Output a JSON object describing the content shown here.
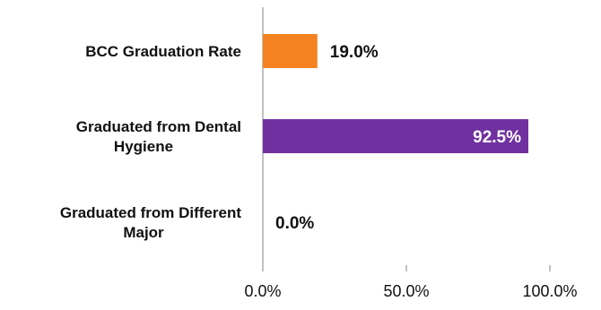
{
  "chart_data": {
    "type": "bar",
    "orientation": "horizontal",
    "categories": [
      [
        "BCC Graduation Rate"
      ],
      [
        "Graduated from Dental",
        "Hygiene"
      ],
      [
        "Graduated from Different",
        "Major"
      ]
    ],
    "values": [
      19.0,
      92.5,
      0.0
    ],
    "value_labels": [
      "19.0%",
      "92.5%",
      "0.0%"
    ],
    "bar_colors": [
      "#F58220",
      "#7030A0",
      "#7030A0"
    ],
    "xlim": [
      0,
      100
    ],
    "xticks": [
      0,
      50,
      100
    ],
    "xtick_labels": [
      "0.0%",
      "50.0%",
      "100.0%"
    ],
    "grid": false,
    "legend": "none"
  }
}
